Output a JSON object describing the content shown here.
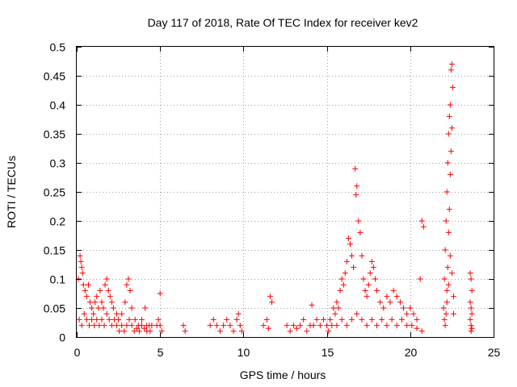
{
  "chart_data": {
    "type": "scatter",
    "title": "Day 117 of 2018, Rate Of TEC Index for receiver kev2",
    "xlabel": "GPS time / hours",
    "ylabel": "ROTI / TECUs",
    "xlim": [
      0,
      25
    ],
    "ylim": [
      0,
      0.5
    ],
    "xticks": [
      0,
      5,
      10,
      15,
      20,
      25
    ],
    "xtick_labels": [
      "0",
      "5",
      "10",
      "15",
      "20",
      "25"
    ],
    "yticks": [
      0,
      0.05,
      0.1,
      0.15,
      0.2,
      0.25,
      0.3,
      0.35,
      0.4,
      0.45,
      0.5
    ],
    "ytick_labels": [
      "0",
      "0.05",
      "0.1",
      "0.15",
      "0.2",
      "0.25",
      "0.3",
      "0.35",
      "0.4",
      "0.45",
      "0.5"
    ],
    "grid": true,
    "marker": "+",
    "color": "#ff0000",
    "series": [
      {
        "name": "ROTI",
        "points": [
          [
            0.1,
            0.1
          ],
          [
            0.2,
            0.14
          ],
          [
            0.25,
            0.13
          ],
          [
            0.3,
            0.12
          ],
          [
            0.35,
            0.11
          ],
          [
            0.4,
            0.09
          ],
          [
            0.5,
            0.08
          ],
          [
            0.6,
            0.07
          ],
          [
            0.7,
            0.09
          ],
          [
            0.8,
            0.06
          ],
          [
            0.9,
            0.05
          ],
          [
            1.0,
            0.04
          ],
          [
            1.1,
            0.06
          ],
          [
            1.2,
            0.07
          ],
          [
            1.3,
            0.05
          ],
          [
            1.4,
            0.08
          ],
          [
            1.5,
            0.06
          ],
          [
            1.6,
            0.05
          ],
          [
            1.7,
            0.09
          ],
          [
            1.8,
            0.1
          ],
          [
            1.9,
            0.08
          ],
          [
            2.0,
            0.07
          ],
          [
            2.1,
            0.06
          ],
          [
            2.2,
            0.05
          ],
          [
            2.4,
            0.04
          ],
          [
            2.5,
            0.03
          ],
          [
            2.7,
            0.04
          ],
          [
            2.9,
            0.06
          ],
          [
            3.0,
            0.09
          ],
          [
            3.1,
            0.1
          ],
          [
            3.2,
            0.08
          ],
          [
            3.3,
            0.05
          ],
          [
            3.5,
            0.03
          ],
          [
            3.7,
            0.02
          ],
          [
            3.9,
            0.03
          ],
          [
            4.1,
            0.05
          ],
          [
            4.2,
            0.02
          ],
          [
            4.4,
            0.01
          ],
          [
            4.5,
            0.02
          ],
          [
            0.15,
            0.03
          ],
          [
            0.3,
            0.02
          ],
          [
            0.45,
            0.04
          ],
          [
            0.6,
            0.03
          ],
          [
            0.75,
            0.02
          ],
          [
            0.9,
            0.03
          ],
          [
            1.05,
            0.02
          ],
          [
            1.2,
            0.03
          ],
          [
            1.35,
            0.02
          ],
          [
            1.5,
            0.03
          ],
          [
            1.65,
            0.02
          ],
          [
            1.8,
            0.04
          ],
          [
            1.95,
            0.03
          ],
          [
            2.1,
            0.02
          ],
          [
            2.25,
            0.03
          ],
          [
            2.4,
            0.02
          ],
          [
            2.55,
            0.01
          ],
          [
            2.7,
            0.02
          ],
          [
            2.85,
            0.01
          ],
          [
            3.0,
            0.02
          ],
          [
            3.15,
            0.03
          ],
          [
            3.3,
            0.02
          ],
          [
            3.45,
            0.01
          ],
          [
            3.6,
            0.015
          ],
          [
            3.75,
            0.01
          ],
          [
            3.9,
            0.02
          ],
          [
            4.05,
            0.015
          ],
          [
            4.2,
            0.01
          ],
          [
            4.35,
            0.02
          ],
          [
            4.8,
            0.02
          ],
          [
            4.9,
            0.03
          ],
          [
            5.0,
            0.02
          ],
          [
            5.1,
            0.01
          ],
          [
            5.0,
            0.075
          ],
          [
            6.4,
            0.02
          ],
          [
            6.5,
            0.01
          ],
          [
            8.0,
            0.02
          ],
          [
            8.2,
            0.03
          ],
          [
            8.4,
            0.02
          ],
          [
            8.6,
            0.01
          ],
          [
            8.8,
            0.02
          ],
          [
            9.0,
            0.03
          ],
          [
            9.2,
            0.02
          ],
          [
            9.4,
            0.01
          ],
          [
            9.6,
            0.03
          ],
          [
            9.7,
            0.04
          ],
          [
            9.8,
            0.02
          ],
          [
            9.9,
            0.01
          ],
          [
            11.2,
            0.02
          ],
          [
            11.4,
            0.03
          ],
          [
            11.5,
            0.015
          ],
          [
            11.6,
            0.07
          ],
          [
            11.7,
            0.06
          ],
          [
            12.6,
            0.02
          ],
          [
            12.8,
            0.01
          ],
          [
            13.0,
            0.02
          ],
          [
            13.2,
            0.015
          ],
          [
            13.4,
            0.02
          ],
          [
            13.6,
            0.03
          ],
          [
            13.8,
            0.01
          ],
          [
            14.0,
            0.02
          ],
          [
            14.1,
            0.055
          ],
          [
            14.2,
            0.02
          ],
          [
            14.4,
            0.03
          ],
          [
            14.6,
            0.02
          ],
          [
            14.8,
            0.03
          ],
          [
            15.0,
            0.02
          ],
          [
            15.2,
            0.03
          ],
          [
            15.4,
            0.05
          ],
          [
            15.5,
            0.04
          ],
          [
            15.6,
            0.06
          ],
          [
            15.7,
            0.05
          ],
          [
            15.8,
            0.08
          ],
          [
            15.9,
            0.1
          ],
          [
            16.0,
            0.09
          ],
          [
            16.1,
            0.11
          ],
          [
            16.2,
            0.13
          ],
          [
            16.3,
            0.17
          ],
          [
            16.4,
            0.16
          ],
          [
            16.5,
            0.14
          ],
          [
            16.6,
            0.12
          ],
          [
            16.7,
            0.29
          ],
          [
            16.8,
            0.26
          ],
          [
            16.75,
            0.245
          ],
          [
            16.9,
            0.2
          ],
          [
            17.0,
            0.18
          ],
          [
            17.1,
            0.14
          ],
          [
            17.2,
            0.1
          ],
          [
            17.3,
            0.08
          ],
          [
            17.4,
            0.07
          ],
          [
            17.5,
            0.09
          ],
          [
            17.6,
            0.11
          ],
          [
            17.7,
            0.13
          ],
          [
            17.8,
            0.12
          ],
          [
            17.9,
            0.1
          ],
          [
            18.0,
            0.08
          ],
          [
            18.2,
            0.06
          ],
          [
            18.4,
            0.05
          ],
          [
            18.6,
            0.07
          ],
          [
            18.8,
            0.06
          ],
          [
            19.0,
            0.08
          ],
          [
            19.2,
            0.07
          ],
          [
            19.4,
            0.06
          ],
          [
            19.6,
            0.05
          ],
          [
            19.8,
            0.04
          ],
          [
            20.0,
            0.05
          ],
          [
            20.2,
            0.04
          ],
          [
            20.4,
            0.03
          ],
          [
            20.6,
            0.1
          ],
          [
            20.7,
            0.2
          ],
          [
            20.8,
            0.19
          ],
          [
            15.1,
            0.01
          ],
          [
            15.3,
            0.02
          ],
          [
            15.6,
            0.02
          ],
          [
            15.9,
            0.03
          ],
          [
            16.2,
            0.02
          ],
          [
            16.5,
            0.03
          ],
          [
            16.8,
            0.04
          ],
          [
            17.1,
            0.03
          ],
          [
            17.4,
            0.02
          ],
          [
            17.7,
            0.03
          ],
          [
            18.0,
            0.02
          ],
          [
            18.3,
            0.03
          ],
          [
            18.6,
            0.02
          ],
          [
            18.9,
            0.03
          ],
          [
            19.2,
            0.02
          ],
          [
            19.5,
            0.03
          ],
          [
            19.8,
            0.02
          ],
          [
            20.1,
            0.02
          ],
          [
            20.4,
            0.015
          ],
          [
            20.7,
            0.01
          ],
          [
            22.0,
            0.05
          ],
          [
            22.05,
            0.1
          ],
          [
            22.1,
            0.15
          ],
          [
            22.15,
            0.2
          ],
          [
            22.2,
            0.25
          ],
          [
            22.25,
            0.3
          ],
          [
            22.3,
            0.35
          ],
          [
            22.35,
            0.38
          ],
          [
            22.4,
            0.4
          ],
          [
            22.45,
            0.46
          ],
          [
            22.5,
            0.47
          ],
          [
            22.55,
            0.43
          ],
          [
            22.5,
            0.36
          ],
          [
            22.45,
            0.32
          ],
          [
            22.4,
            0.28
          ],
          [
            22.35,
            0.22
          ],
          [
            22.3,
            0.18
          ],
          [
            22.25,
            0.12
          ],
          [
            22.2,
            0.08
          ],
          [
            22.15,
            0.04
          ],
          [
            22.1,
            0.02
          ],
          [
            22.05,
            0.03
          ],
          [
            22.2,
            0.06
          ],
          [
            22.3,
            0.09
          ],
          [
            22.4,
            0.14
          ],
          [
            22.5,
            0.11
          ],
          [
            22.6,
            0.07
          ],
          [
            22.6,
            0.04
          ],
          [
            23.6,
            0.11
          ],
          [
            23.65,
            0.1
          ],
          [
            23.7,
            0.08
          ],
          [
            23.6,
            0.06
          ],
          [
            23.65,
            0.05
          ],
          [
            23.7,
            0.04
          ],
          [
            23.6,
            0.03
          ],
          [
            23.65,
            0.02
          ],
          [
            23.7,
            0.015
          ],
          [
            23.65,
            0.01
          ]
        ]
      }
    ]
  }
}
